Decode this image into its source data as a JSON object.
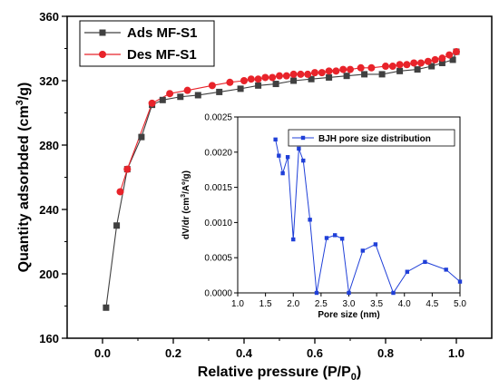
{
  "chart_data": [
    {
      "type": "line",
      "xlabel": "Relative pressure (P/P₀)",
      "xlabel_base": "Relative pressure (P/P",
      "xlabel_sub": "0",
      "xlabel_tail": ")",
      "ylabel": "Quantity adsorbded (cm³/g)",
      "ylabel_base": "Quantity adsorbded (cm",
      "ylabel_sup": "3",
      "ylabel_tail": "/g)",
      "xlim": [
        -0.1,
        1.1
      ],
      "ylim": [
        160,
        360
      ],
      "xticks": [
        "0.0",
        "0.2",
        "0.4",
        "0.6",
        "0.8",
        "1.0"
      ],
      "yticks": [
        "160",
        "200",
        "240",
        "280",
        "320",
        "360"
      ],
      "legend_position": "top-left",
      "series": [
        {
          "name": "Ads MF-S1",
          "color": "#404040",
          "marker": "square",
          "x": [
            0.01,
            0.04,
            0.07,
            0.11,
            0.14,
            0.17,
            0.22,
            0.27,
            0.33,
            0.39,
            0.44,
            0.49,
            0.54,
            0.59,
            0.64,
            0.69,
            0.74,
            0.79,
            0.84,
            0.89,
            0.93,
            0.96,
            0.99,
            1.0
          ],
          "y": [
            179,
            230,
            265,
            285,
            305,
            308,
            310,
            311,
            313,
            315,
            317,
            318,
            320,
            321,
            322,
            323,
            324,
            324,
            326,
            327,
            329,
            331,
            333,
            338
          ]
        },
        {
          "name": "Des MF-S1",
          "color": "#e8232a",
          "marker": "circle",
          "x": [
            1.0,
            0.98,
            0.96,
            0.94,
            0.92,
            0.9,
            0.88,
            0.86,
            0.84,
            0.82,
            0.8,
            0.76,
            0.73,
            0.7,
            0.68,
            0.66,
            0.64,
            0.62,
            0.6,
            0.58,
            0.56,
            0.54,
            0.52,
            0.5,
            0.48,
            0.46,
            0.44,
            0.42,
            0.4,
            0.36,
            0.31,
            0.24,
            0.19,
            0.14,
            0.07,
            0.05
          ],
          "y": [
            338,
            336,
            334,
            333,
            332,
            331,
            331,
            330,
            330,
            329,
            329,
            328,
            328,
            327,
            327,
            326,
            326,
            325,
            325,
            324,
            324,
            324,
            323,
            323,
            322,
            322,
            321,
            321,
            320,
            319,
            317,
            314,
            312,
            306,
            265,
            251
          ]
        }
      ]
    },
    {
      "type": "line",
      "xlabel": "Pore size (nm)",
      "ylabel": "dV/dr (cm³/Aº/g)",
      "ylabel_base": "dV/dr (cm",
      "ylabel_sup": "3",
      "ylabel_tail": "/Aº/g)",
      "xlim": [
        1.0,
        5.0
      ],
      "ylim": [
        0,
        0.0025
      ],
      "xticks": [
        "1.0",
        "1.5",
        "2.0",
        "2.5",
        "3.0",
        "3.5",
        "4.0",
        "4.5",
        "5.0"
      ],
      "yticks": [
        "0.0000",
        "0.0005",
        "0.0010",
        "0.0015",
        "0.0020",
        "0.0025"
      ],
      "legend_position": "top-right",
      "series": [
        {
          "name": "BJH pore size distribution",
          "color": "#1f3fd8",
          "marker": "square",
          "x": [
            1.68,
            1.74,
            1.81,
            1.9,
            2.0,
            2.1,
            2.18,
            2.3,
            2.42,
            2.6,
            2.75,
            2.88,
            3.0,
            3.25,
            3.48,
            3.8,
            4.05,
            4.37,
            4.75,
            5.0
          ],
          "y": [
            0.00218,
            0.00195,
            0.0017,
            0.00193,
            0.00076,
            0.00205,
            0.00188,
            0.00104,
            0.0,
            0.00078,
            0.00082,
            0.00077,
            0.0,
            0.0006,
            0.00069,
            0.0,
            0.0003,
            0.00044,
            0.00033,
            0.00016
          ]
        }
      ]
    }
  ]
}
